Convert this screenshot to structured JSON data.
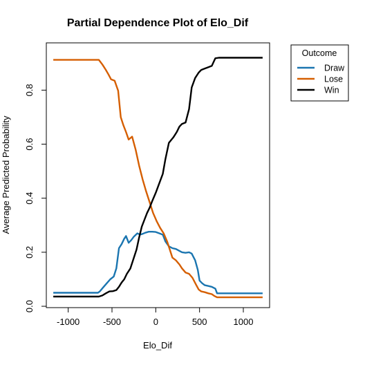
{
  "chart_data": {
    "type": "line",
    "title": "Partial Dependence Plot of Elo_Dif",
    "xlabel": "Elo_Dif",
    "ylabel": "Average Predicted Probability",
    "xlim": [
      -1250,
      1300
    ],
    "ylim": [
      -0.005,
      0.975
    ],
    "xticks": [
      -1000,
      -500,
      0,
      500,
      1000
    ],
    "xtick_labels": [
      "-1000",
      "-500",
      "0",
      "500",
      "1000"
    ],
    "yticks": [
      0.0,
      0.2,
      0.4,
      0.6,
      0.8
    ],
    "ytick_labels": [
      "0.0",
      "0.2",
      "0.4",
      "0.6",
      "0.8"
    ],
    "legend": {
      "title": "Outcome",
      "placement": "outside-top-right"
    },
    "series": [
      {
        "name": "Draw",
        "color": "#1a75b0",
        "points": [
          [
            -1170,
            0.05
          ],
          [
            -660,
            0.05
          ],
          [
            -640,
            0.055
          ],
          [
            -600,
            0.07
          ],
          [
            -560,
            0.085
          ],
          [
            -520,
            0.1
          ],
          [
            -480,
            0.11
          ],
          [
            -450,
            0.14
          ],
          [
            -420,
            0.215
          ],
          [
            -390,
            0.23
          ],
          [
            -360,
            0.25
          ],
          [
            -340,
            0.26
          ],
          [
            -310,
            0.235
          ],
          [
            -280,
            0.245
          ],
          [
            -250,
            0.258
          ],
          [
            -210,
            0.27
          ],
          [
            -180,
            0.265
          ],
          [
            -150,
            0.268
          ],
          [
            -120,
            0.272
          ],
          [
            -80,
            0.276
          ],
          [
            -40,
            0.276
          ],
          [
            0,
            0.275
          ],
          [
            40,
            0.27
          ],
          [
            80,
            0.265
          ],
          [
            110,
            0.24
          ],
          [
            150,
            0.222
          ],
          [
            190,
            0.215
          ],
          [
            230,
            0.212
          ],
          [
            270,
            0.205
          ],
          [
            300,
            0.2
          ],
          [
            340,
            0.198
          ],
          [
            380,
            0.2
          ],
          [
            410,
            0.195
          ],
          [
            450,
            0.17
          ],
          [
            480,
            0.135
          ],
          [
            500,
            0.095
          ],
          [
            530,
            0.085
          ],
          [
            560,
            0.078
          ],
          [
            600,
            0.075
          ],
          [
            640,
            0.072
          ],
          [
            680,
            0.065
          ],
          [
            700,
            0.048
          ],
          [
            1220,
            0.048
          ]
        ]
      },
      {
        "name": "Lose",
        "color": "#d55e00",
        "points": [
          [
            -1170,
            0.912
          ],
          [
            -650,
            0.912
          ],
          [
            -610,
            0.895
          ],
          [
            -570,
            0.875
          ],
          [
            -540,
            0.858
          ],
          [
            -510,
            0.84
          ],
          [
            -470,
            0.835
          ],
          [
            -430,
            0.798
          ],
          [
            -400,
            0.7
          ],
          [
            -370,
            0.67
          ],
          [
            -340,
            0.645
          ],
          [
            -310,
            0.617
          ],
          [
            -270,
            0.628
          ],
          [
            -230,
            0.58
          ],
          [
            -190,
            0.52
          ],
          [
            -150,
            0.47
          ],
          [
            -110,
            0.425
          ],
          [
            -70,
            0.385
          ],
          [
            -30,
            0.345
          ],
          [
            10,
            0.315
          ],
          [
            50,
            0.29
          ],
          [
            90,
            0.27
          ],
          [
            130,
            0.24
          ],
          [
            160,
            0.21
          ],
          [
            190,
            0.18
          ],
          [
            230,
            0.17
          ],
          [
            270,
            0.155
          ],
          [
            300,
            0.14
          ],
          [
            340,
            0.125
          ],
          [
            380,
            0.12
          ],
          [
            420,
            0.105
          ],
          [
            460,
            0.08
          ],
          [
            490,
            0.062
          ],
          [
            520,
            0.055
          ],
          [
            560,
            0.052
          ],
          [
            600,
            0.048
          ],
          [
            640,
            0.045
          ],
          [
            670,
            0.038
          ],
          [
            700,
            0.033
          ],
          [
            1220,
            0.033
          ]
        ]
      },
      {
        "name": "Win",
        "color": "#000000",
        "points": [
          [
            -1170,
            0.036
          ],
          [
            -650,
            0.036
          ],
          [
            -610,
            0.04
          ],
          [
            -570,
            0.048
          ],
          [
            -530,
            0.055
          ],
          [
            -490,
            0.056
          ],
          [
            -450,
            0.06
          ],
          [
            -420,
            0.072
          ],
          [
            -390,
            0.088
          ],
          [
            -360,
            0.1
          ],
          [
            -330,
            0.12
          ],
          [
            -290,
            0.14
          ],
          [
            -260,
            0.17
          ],
          [
            -220,
            0.21
          ],
          [
            -190,
            0.255
          ],
          [
            -160,
            0.295
          ],
          [
            -130,
            0.32
          ],
          [
            -100,
            0.345
          ],
          [
            -70,
            0.365
          ],
          [
            -40,
            0.39
          ],
          [
            0,
            0.42
          ],
          [
            40,
            0.455
          ],
          [
            80,
            0.49
          ],
          [
            110,
            0.545
          ],
          [
            150,
            0.605
          ],
          [
            200,
            0.625
          ],
          [
            240,
            0.645
          ],
          [
            270,
            0.665
          ],
          [
            300,
            0.675
          ],
          [
            340,
            0.68
          ],
          [
            380,
            0.73
          ],
          [
            410,
            0.81
          ],
          [
            450,
            0.845
          ],
          [
            490,
            0.865
          ],
          [
            520,
            0.875
          ],
          [
            560,
            0.88
          ],
          [
            600,
            0.885
          ],
          [
            640,
            0.89
          ],
          [
            680,
            0.918
          ],
          [
            720,
            0.92
          ],
          [
            1220,
            0.92
          ]
        ]
      }
    ]
  }
}
